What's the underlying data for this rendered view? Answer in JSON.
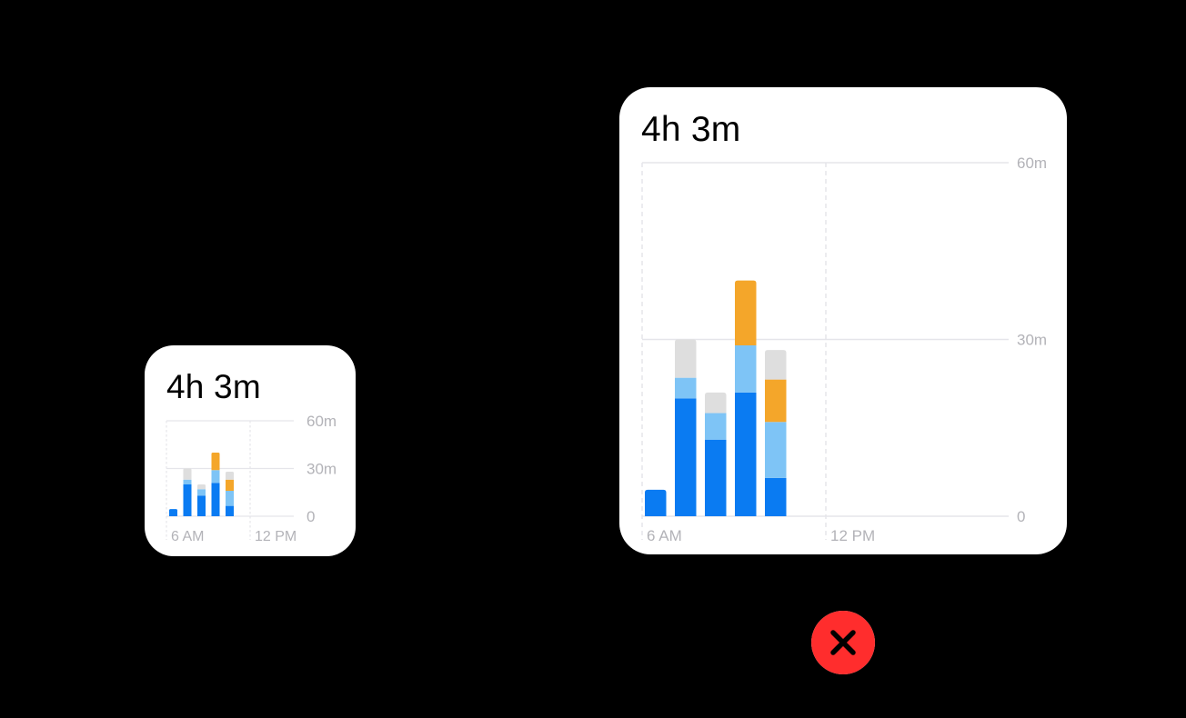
{
  "colors": {
    "background": "#000000",
    "card": "#ffffff",
    "primary_blue": "#0a7bf2",
    "light_blue": "#7ec4f6",
    "gray": "#dedede",
    "orange": "#f4a62a",
    "gridline": "#e5e5ea",
    "axis_text": "#b3b3b8",
    "close_red": "#ff2d2d"
  },
  "close_button": {
    "icon": "close-x-icon",
    "color": "#ff2d2d"
  },
  "widgets": [
    {
      "size": "small",
      "title": "4h 3m",
      "chart_data": {
        "type": "bar",
        "stacked": true,
        "x_labels": [
          "6 AM",
          "12 PM"
        ],
        "y_ticks": [
          "60m",
          "30m",
          "0"
        ],
        "ylim": [
          0,
          60
        ],
        "bars": [
          {
            "hour": 6,
            "segments": [
              {
                "color": "primary_blue",
                "minutes": 4.5
              }
            ]
          },
          {
            "hour": 7,
            "segments": [
              {
                "color": "primary_blue",
                "minutes": 20
              },
              {
                "color": "light_blue",
                "minutes": 3
              },
              {
                "color": "gray",
                "minutes": 7
              }
            ]
          },
          {
            "hour": 8,
            "segments": [
              {
                "color": "primary_blue",
                "minutes": 13
              },
              {
                "color": "light_blue",
                "minutes": 4
              },
              {
                "color": "gray",
                "minutes": 3
              }
            ]
          },
          {
            "hour": 9,
            "segments": [
              {
                "color": "primary_blue",
                "minutes": 21
              },
              {
                "color": "light_blue",
                "minutes": 8
              },
              {
                "color": "orange",
                "minutes": 11
              }
            ]
          },
          {
            "hour": 10,
            "segments": [
              {
                "color": "primary_blue",
                "minutes": 6.5
              },
              {
                "color": "light_blue",
                "minutes": 9.5
              },
              {
                "color": "orange",
                "minutes": 7
              },
              {
                "color": "gray",
                "minutes": 5
              }
            ]
          }
        ]
      }
    },
    {
      "size": "medium",
      "title": "4h 3m",
      "chart_data": {
        "type": "bar",
        "stacked": true,
        "x_labels": [
          "6 AM",
          "12 PM"
        ],
        "y_ticks": [
          "60m",
          "30m",
          "0"
        ],
        "ylim": [
          0,
          60
        ],
        "bars": [
          {
            "hour": 6,
            "segments": [
              {
                "color": "primary_blue",
                "minutes": 4.5
              }
            ]
          },
          {
            "hour": 7,
            "segments": [
              {
                "color": "primary_blue",
                "minutes": 20
              },
              {
                "color": "light_blue",
                "minutes": 3.5
              },
              {
                "color": "gray",
                "minutes": 6.5
              }
            ]
          },
          {
            "hour": 8,
            "segments": [
              {
                "color": "primary_blue",
                "minutes": 13
              },
              {
                "color": "light_blue",
                "minutes": 4.5
              },
              {
                "color": "gray",
                "minutes": 3.5
              }
            ]
          },
          {
            "hour": 9,
            "segments": [
              {
                "color": "primary_blue",
                "minutes": 21
              },
              {
                "color": "light_blue",
                "minutes": 8
              },
              {
                "color": "orange",
                "minutes": 11
              }
            ]
          },
          {
            "hour": 10,
            "segments": [
              {
                "color": "primary_blue",
                "minutes": 6.5
              },
              {
                "color": "light_blue",
                "minutes": 9.5
              },
              {
                "color": "orange",
                "minutes": 7.2
              },
              {
                "color": "gray",
                "minutes": 5
              }
            ]
          }
        ]
      }
    }
  ]
}
